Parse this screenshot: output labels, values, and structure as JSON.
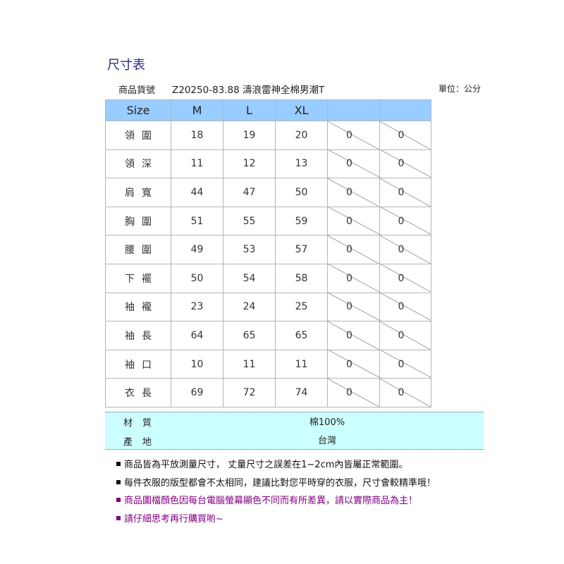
{
  "title": "尺寸表",
  "product": {
    "label": "商品貨號",
    "name": "Z20250-83.88 濤浪雷神全棉男潮T",
    "unit": "單位：公分"
  },
  "table": {
    "headers": [
      "Size",
      "M",
      "L",
      "XL",
      "",
      ""
    ],
    "rows": [
      {
        "label": "領圍",
        "values": [
          "18",
          "19",
          "20",
          "0",
          "0"
        ]
      },
      {
        "label": "領深",
        "values": [
          "11",
          "12",
          "13",
          "0",
          "0"
        ]
      },
      {
        "label": "肩寬",
        "values": [
          "44",
          "47",
          "50",
          "0",
          "0"
        ]
      },
      {
        "label": "胸圍",
        "values": [
          "51",
          "55",
          "59",
          "0",
          "0"
        ]
      },
      {
        "label": "腰圍",
        "values": [
          "49",
          "53",
          "57",
          "0",
          "0"
        ]
      },
      {
        "label": "下襬",
        "values": [
          "50",
          "54",
          "58",
          "0",
          "0"
        ]
      },
      {
        "label": "袖襱",
        "values": [
          "23",
          "24",
          "25",
          "0",
          "0"
        ]
      },
      {
        "label": "袖長",
        "values": [
          "64",
          "65",
          "65",
          "0",
          "0"
        ]
      },
      {
        "label": "袖口",
        "values": [
          "10",
          "11",
          "11",
          "0",
          "0"
        ]
      },
      {
        "label": "衣長",
        "values": [
          "69",
          "72",
          "74",
          "0",
          "0"
        ]
      }
    ]
  },
  "info": [
    {
      "label": "材質",
      "value": "棉100%"
    },
    {
      "label": "產地",
      "value": "台灣"
    }
  ],
  "notes": [
    {
      "text": "商品皆為平放測量尺寸， 丈量尺寸之誤差在1~2cm內皆屬正常範圍。",
      "color": "#111111"
    },
    {
      "text": "每件衣服的版型都會不太相同，建議比對您平時穿的衣服，尺寸會較精準哦！",
      "color": "#111111"
    },
    {
      "text": "商品圖檔顏色因每台電腦螢幕顯色不同而有所差異，請以實際商品為主！",
      "color": "#800080"
    },
    {
      "text": "請仔細思考再行購買喲~",
      "color": "#800080"
    }
  ],
  "colors": {
    "header_bg": "#99ccff",
    "info_bg": "#ccffff",
    "title": "#2a2a8a"
  }
}
